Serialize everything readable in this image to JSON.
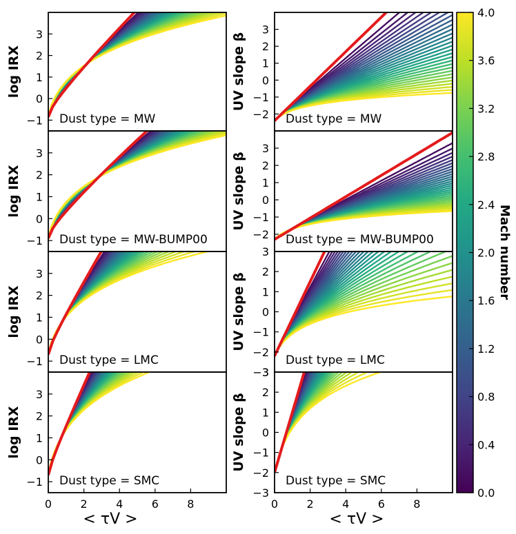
{
  "figure": {
    "xlabel": "< τV >",
    "colorbar_label": "Mach number",
    "colorbar_ticks": [
      "0.0",
      "0.4",
      "0.8",
      "1.2",
      "1.6",
      "2.0",
      "2.4",
      "2.8",
      "3.2",
      "3.6",
      "4.0"
    ],
    "mach_range": [
      0,
      4
    ],
    "curve_count": 30,
    "highlight_color": "#e41a1c"
  },
  "chart_data": [
    {
      "type": "line",
      "id": "irx-mw",
      "column": "left",
      "row": 0,
      "ylabel": "log IRX",
      "annotation": "Dust type = MW",
      "quantity": "irx",
      "xlim": [
        0,
        10
      ],
      "ylim": [
        -1.5,
        4
      ],
      "yticks": [
        "−1",
        "0",
        "1",
        "2",
        "3"
      ],
      "xticks": [],
      "uniform_slope": 0.85,
      "high_mach_slope": 0.45,
      "start": -0.85
    },
    {
      "type": "line",
      "id": "beta-mw",
      "column": "right",
      "row": 0,
      "ylabel": "UV slope β",
      "annotation": "Dust type = MW",
      "quantity": "beta",
      "xlim": [
        0,
        10
      ],
      "ylim": [
        -3,
        4
      ],
      "yticks": [
        "−2",
        "−1",
        "0",
        "1",
        "2",
        "3"
      ],
      "xticks": [],
      "uniform_slope": 1.02,
      "high_mach_slope": 0.25,
      "start": -2.4
    },
    {
      "type": "line",
      "id": "irx-mwb",
      "column": "left",
      "row": 1,
      "ylabel": "log IRX",
      "annotation": "Dust type = MW-BUMP00",
      "quantity": "irx",
      "xlim": [
        0,
        10
      ],
      "ylim": [
        -1.5,
        4
      ],
      "yticks": [
        "−1",
        "0",
        "1",
        "2",
        "3"
      ],
      "xticks": [],
      "uniform_slope": 0.75,
      "high_mach_slope": 0.45,
      "start": -0.9
    },
    {
      "type": "line",
      "id": "beta-mwb",
      "column": "right",
      "row": 1,
      "ylabel": "UV slope β",
      "annotation": "Dust type = MW-BUMP00",
      "quantity": "beta",
      "xlim": [
        0,
        10
      ],
      "ylim": [
        -3,
        4
      ],
      "yticks": [
        "−2",
        "−1",
        "0",
        "1",
        "2",
        "3"
      ],
      "xticks": [],
      "uniform_slope": 0.62,
      "high_mach_slope": 0.25,
      "start": -2.3
    },
    {
      "type": "line",
      "id": "irx-lmc",
      "column": "left",
      "row": 2,
      "ylabel": "log IRX",
      "annotation": "Dust type = LMC",
      "quantity": "irx",
      "xlim": [
        0,
        10
      ],
      "ylim": [
        -1.5,
        4
      ],
      "yticks": [
        "−1",
        "0",
        "1",
        "2",
        "3"
      ],
      "xticks": [],
      "uniform_slope": 1.35,
      "high_mach_slope": 0.48,
      "start": -0.7
    },
    {
      "type": "line",
      "id": "beta-lmc",
      "column": "right",
      "row": 2,
      "ylabel": "UV slope β",
      "annotation": "Dust type = LMC",
      "quantity": "beta",
      "xlim": [
        0,
        10
      ],
      "ylim": [
        -3,
        3
      ],
      "yticks": [
        "−3",
        "−2",
        "−1",
        "0",
        "1",
        "2",
        "3"
      ],
      "xticks": [],
      "uniform_slope": 1.85,
      "high_mach_slope": 0.45,
      "start": -2.2
    },
    {
      "type": "line",
      "id": "irx-smc",
      "column": "left",
      "row": 3,
      "ylabel": "log IRX",
      "annotation": "Dust type = SMC",
      "quantity": "irx",
      "xlim": [
        0,
        10
      ],
      "ylim": [
        -1.5,
        4
      ],
      "yticks": [
        "−1",
        "0",
        "1",
        "2",
        "3"
      ],
      "xticks": [
        "0",
        "2",
        "4",
        "6",
        "8"
      ],
      "uniform_slope": 1.75,
      "high_mach_slope": 0.62,
      "start": -0.7
    },
    {
      "type": "line",
      "id": "beta-smc",
      "column": "right",
      "row": 3,
      "ylabel": "UV slope β",
      "annotation": "Dust type = SMC",
      "quantity": "beta",
      "xlim": [
        0,
        10
      ],
      "ylim": [
        -3,
        3
      ],
      "yticks": [
        "−3",
        "−2",
        "−1",
        "0",
        "1",
        "2",
        "3"
      ],
      "xticks": [
        "0",
        "2",
        "4",
        "6",
        "8"
      ],
      "uniform_slope": 3.0,
      "high_mach_slope": 0.9,
      "start": -2.0
    }
  ]
}
